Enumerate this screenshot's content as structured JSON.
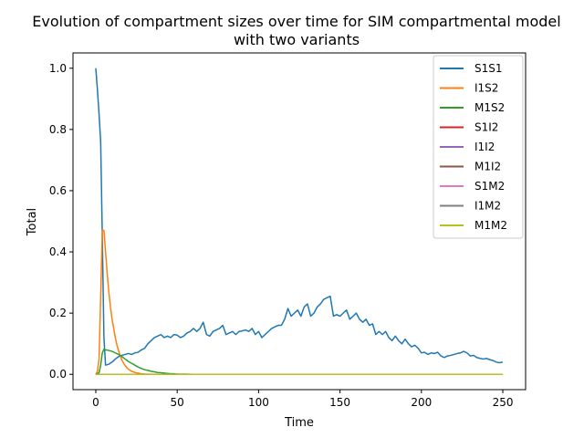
{
  "chart_data": {
    "type": "line",
    "title_line1": "Evolution of compartment sizes over time for SIM compartmental model",
    "title_line2": "with two variants",
    "xlabel": "Time",
    "ylabel": "Total",
    "xlim": [
      -14,
      264
    ],
    "ylim": [
      -0.05,
      1.05
    ],
    "xticks": [
      0,
      50,
      100,
      150,
      200,
      250
    ],
    "yticks": [
      0.0,
      0.2,
      0.4,
      0.6,
      0.8,
      1.0
    ],
    "xtick_labels": [
      "0",
      "50",
      "100",
      "150",
      "200",
      "250"
    ],
    "ytick_labels": [
      "0.0",
      "0.2",
      "0.4",
      "0.6",
      "0.8",
      "1.0"
    ],
    "grid": false,
    "legend_position": "top-right",
    "series": [
      {
        "name": "S1S1",
        "color": "#1f77b4",
        "x": [
          0,
          1,
          2,
          3,
          4,
          5,
          6,
          8,
          10,
          12,
          14,
          16,
          18,
          20,
          22,
          24,
          26,
          28,
          30,
          32,
          34,
          36,
          38,
          40,
          42,
          44,
          46,
          48,
          50,
          52,
          54,
          56,
          58,
          60,
          62,
          64,
          66,
          68,
          70,
          72,
          74,
          76,
          78,
          80,
          82,
          84,
          86,
          88,
          90,
          92,
          94,
          96,
          98,
          100,
          102,
          104,
          106,
          108,
          110,
          112,
          114,
          116,
          118,
          120,
          122,
          124,
          126,
          128,
          130,
          132,
          134,
          136,
          138,
          140,
          142,
          144,
          146,
          148,
          150,
          152,
          154,
          156,
          158,
          160,
          162,
          164,
          166,
          168,
          170,
          172,
          174,
          176,
          178,
          180,
          182,
          184,
          186,
          188,
          190,
          192,
          194,
          196,
          198,
          200,
          202,
          204,
          206,
          208,
          210,
          212,
          214,
          216,
          218,
          220,
          222,
          224,
          226,
          228,
          230,
          232,
          234,
          236,
          238,
          240,
          242,
          244,
          246,
          248,
          250
        ],
        "y": [
          1.0,
          0.93,
          0.85,
          0.76,
          0.45,
          0.12,
          0.03,
          0.033,
          0.04,
          0.05,
          0.058,
          0.062,
          0.065,
          0.068,
          0.065,
          0.07,
          0.072,
          0.08,
          0.085,
          0.1,
          0.11,
          0.12,
          0.125,
          0.13,
          0.12,
          0.125,
          0.12,
          0.13,
          0.128,
          0.12,
          0.125,
          0.135,
          0.14,
          0.15,
          0.14,
          0.15,
          0.17,
          0.13,
          0.125,
          0.14,
          0.145,
          0.15,
          0.16,
          0.13,
          0.135,
          0.14,
          0.13,
          0.14,
          0.142,
          0.145,
          0.14,
          0.15,
          0.13,
          0.14,
          0.12,
          0.13,
          0.14,
          0.15,
          0.155,
          0.16,
          0.16,
          0.18,
          0.215,
          0.19,
          0.2,
          0.21,
          0.19,
          0.22,
          0.23,
          0.19,
          0.2,
          0.22,
          0.23,
          0.245,
          0.25,
          0.255,
          0.19,
          0.195,
          0.19,
          0.2,
          0.21,
          0.18,
          0.19,
          0.2,
          0.18,
          0.17,
          0.18,
          0.16,
          0.165,
          0.13,
          0.14,
          0.13,
          0.14,
          0.12,
          0.11,
          0.125,
          0.11,
          0.1,
          0.115,
          0.1,
          0.09,
          0.095,
          0.085,
          0.07,
          0.072,
          0.065,
          0.07,
          0.068,
          0.072,
          0.06,
          0.055,
          0.06,
          0.062,
          0.065,
          0.068,
          0.07,
          0.075,
          0.07,
          0.06,
          0.062,
          0.055,
          0.052,
          0.05,
          0.052,
          0.048,
          0.045,
          0.04,
          0.038,
          0.04
        ]
      },
      {
        "name": "I1S2",
        "color": "#ff7f0e",
        "x": [
          0,
          1,
          2,
          3,
          4,
          5,
          6,
          7,
          8,
          9,
          10,
          11,
          12,
          13,
          14,
          15,
          16,
          17,
          18,
          19,
          20,
          22,
          24,
          26,
          28,
          30,
          35,
          40,
          250
        ],
        "y": [
          0.0,
          0.01,
          0.05,
          0.25,
          0.47,
          0.47,
          0.4,
          0.33,
          0.27,
          0.22,
          0.18,
          0.15,
          0.12,
          0.095,
          0.077,
          0.06,
          0.047,
          0.037,
          0.029,
          0.022,
          0.017,
          0.01,
          0.006,
          0.004,
          0.002,
          0.001,
          0.0003,
          0.0,
          0.0
        ]
      },
      {
        "name": "M1S2",
        "color": "#2ca02c",
        "x": [
          0,
          2,
          3,
          4,
          5,
          6,
          8,
          10,
          12,
          14,
          16,
          18,
          20,
          22,
          24,
          26,
          28,
          30,
          32,
          34,
          36,
          38,
          40,
          42,
          44,
          46,
          48,
          50,
          55,
          60,
          250
        ],
        "y": [
          0.0,
          0.005,
          0.03,
          0.07,
          0.082,
          0.08,
          0.078,
          0.075,
          0.07,
          0.065,
          0.058,
          0.05,
          0.042,
          0.036,
          0.03,
          0.024,
          0.019,
          0.015,
          0.013,
          0.01,
          0.008,
          0.006,
          0.005,
          0.004,
          0.003,
          0.002,
          0.0015,
          0.001,
          0.0005,
          0.0,
          0.0
        ]
      },
      {
        "name": "S1I2",
        "color": "#d62728",
        "x": [
          0,
          250
        ],
        "y": [
          0.0,
          0.0
        ]
      },
      {
        "name": "I1I2",
        "color": "#9467bd",
        "x": [
          0,
          250
        ],
        "y": [
          0.0,
          0.0
        ]
      },
      {
        "name": "M1I2",
        "color": "#8c564b",
        "x": [
          0,
          250
        ],
        "y": [
          0.0,
          0.0
        ]
      },
      {
        "name": "S1M2",
        "color": "#e377c2",
        "x": [
          0,
          250
        ],
        "y": [
          0.0,
          0.0
        ]
      },
      {
        "name": "I1M2",
        "color": "#7f7f7f",
        "x": [
          0,
          250
        ],
        "y": [
          0.0,
          0.0
        ]
      },
      {
        "name": "M1M2",
        "color": "#bcbd22",
        "x": [
          0,
          250
        ],
        "y": [
          0.0,
          0.0
        ]
      }
    ]
  }
}
